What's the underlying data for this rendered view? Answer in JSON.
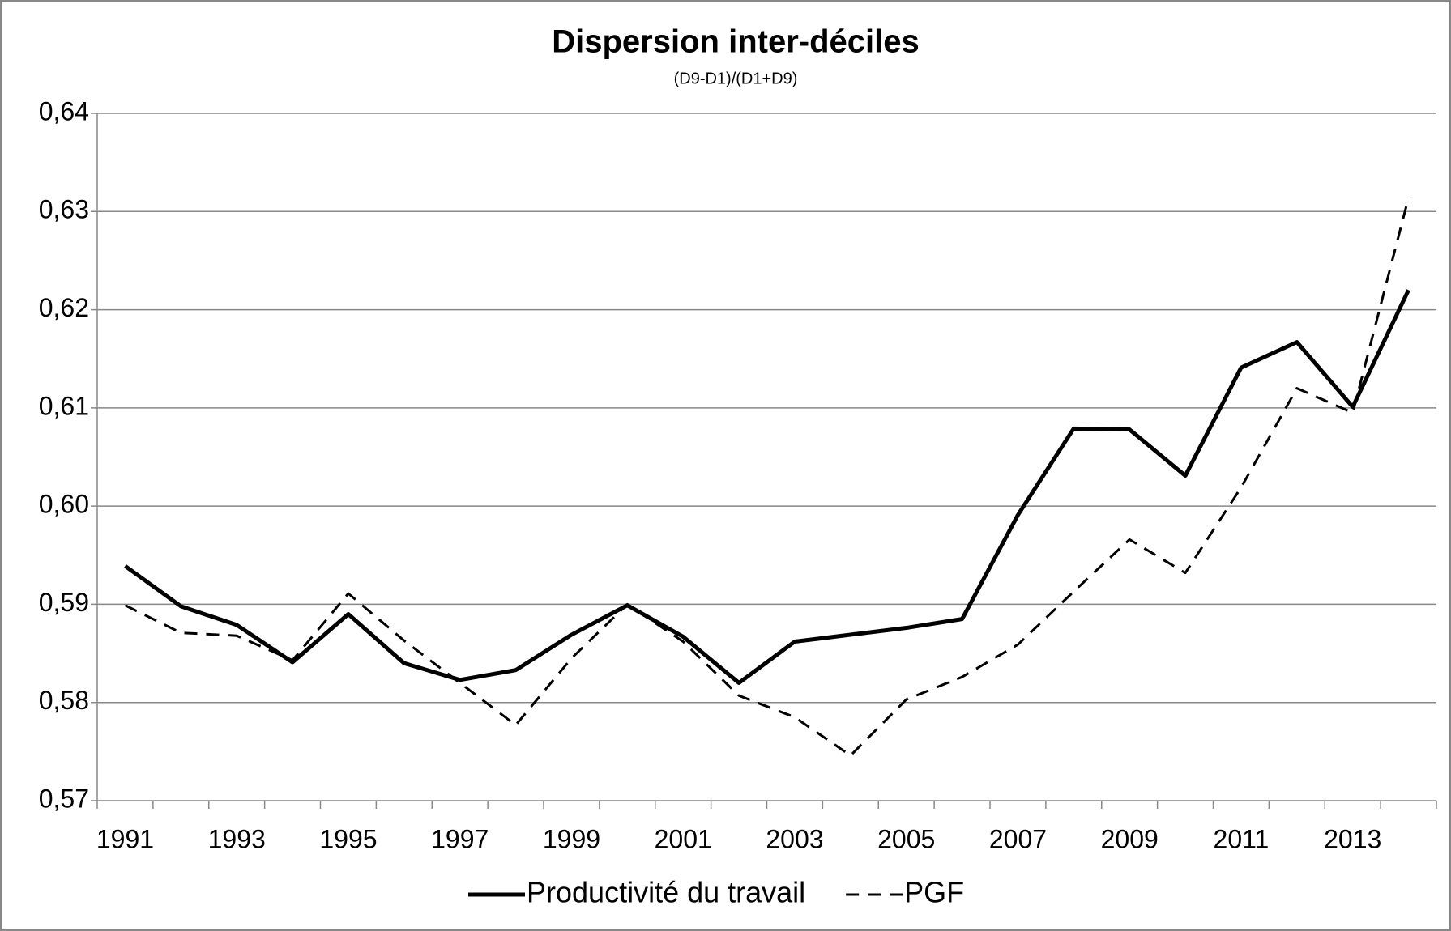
{
  "chart_data": {
    "type": "line",
    "title": "Dispersion inter-déciles",
    "subtitle": "(D9-D1)/(D1+D9)",
    "categories": [
      "1991",
      null,
      "1993",
      null,
      "1995",
      null,
      "1997",
      null,
      "1999",
      null,
      "2001",
      null,
      "2003",
      null,
      "2005",
      null,
      "2007",
      null,
      "2009",
      null,
      "2011",
      null,
      "2013",
      null
    ],
    "series": [
      {
        "name": "Productivité du travail",
        "color": "#000000",
        "dashed": false,
        "values": [
          0.5939,
          0.5898,
          0.5879,
          0.5841,
          0.589,
          0.584,
          0.5823,
          0.5833,
          0.5869,
          0.5899,
          0.5867,
          0.582,
          0.5862,
          0.5869,
          0.5876,
          0.5885,
          0.5991,
          0.6079,
          0.6078,
          0.6031,
          0.6141,
          0.6167,
          0.6101,
          0.622
        ]
      },
      {
        "name": "PGF",
        "color": "#000000",
        "dashed": true,
        "values": [
          0.5899,
          0.5871,
          0.5868,
          0.5843,
          0.5911,
          0.5863,
          0.582,
          0.5777,
          0.5845,
          0.59,
          0.5862,
          0.5807,
          0.5785,
          0.5746,
          0.5803,
          0.5826,
          0.5859,
          0.5913,
          0.5966,
          0.5932,
          0.6019,
          0.612,
          0.6095,
          0.6314
        ]
      }
    ],
    "ylim": [
      0.57,
      0.64
    ],
    "yticks": [
      {
        "value": 0.57,
        "label": "0,57"
      },
      {
        "value": 0.58,
        "label": "0,58"
      },
      {
        "value": 0.59,
        "label": "0,59"
      },
      {
        "value": 0.6,
        "label": "0,60"
      },
      {
        "value": 0.61,
        "label": "0,61"
      },
      {
        "value": 0.62,
        "label": "0,62"
      },
      {
        "value": 0.63,
        "label": "0,63"
      },
      {
        "value": 0.64,
        "label": "0,64"
      }
    ],
    "grid": true,
    "legend": "bottom"
  }
}
